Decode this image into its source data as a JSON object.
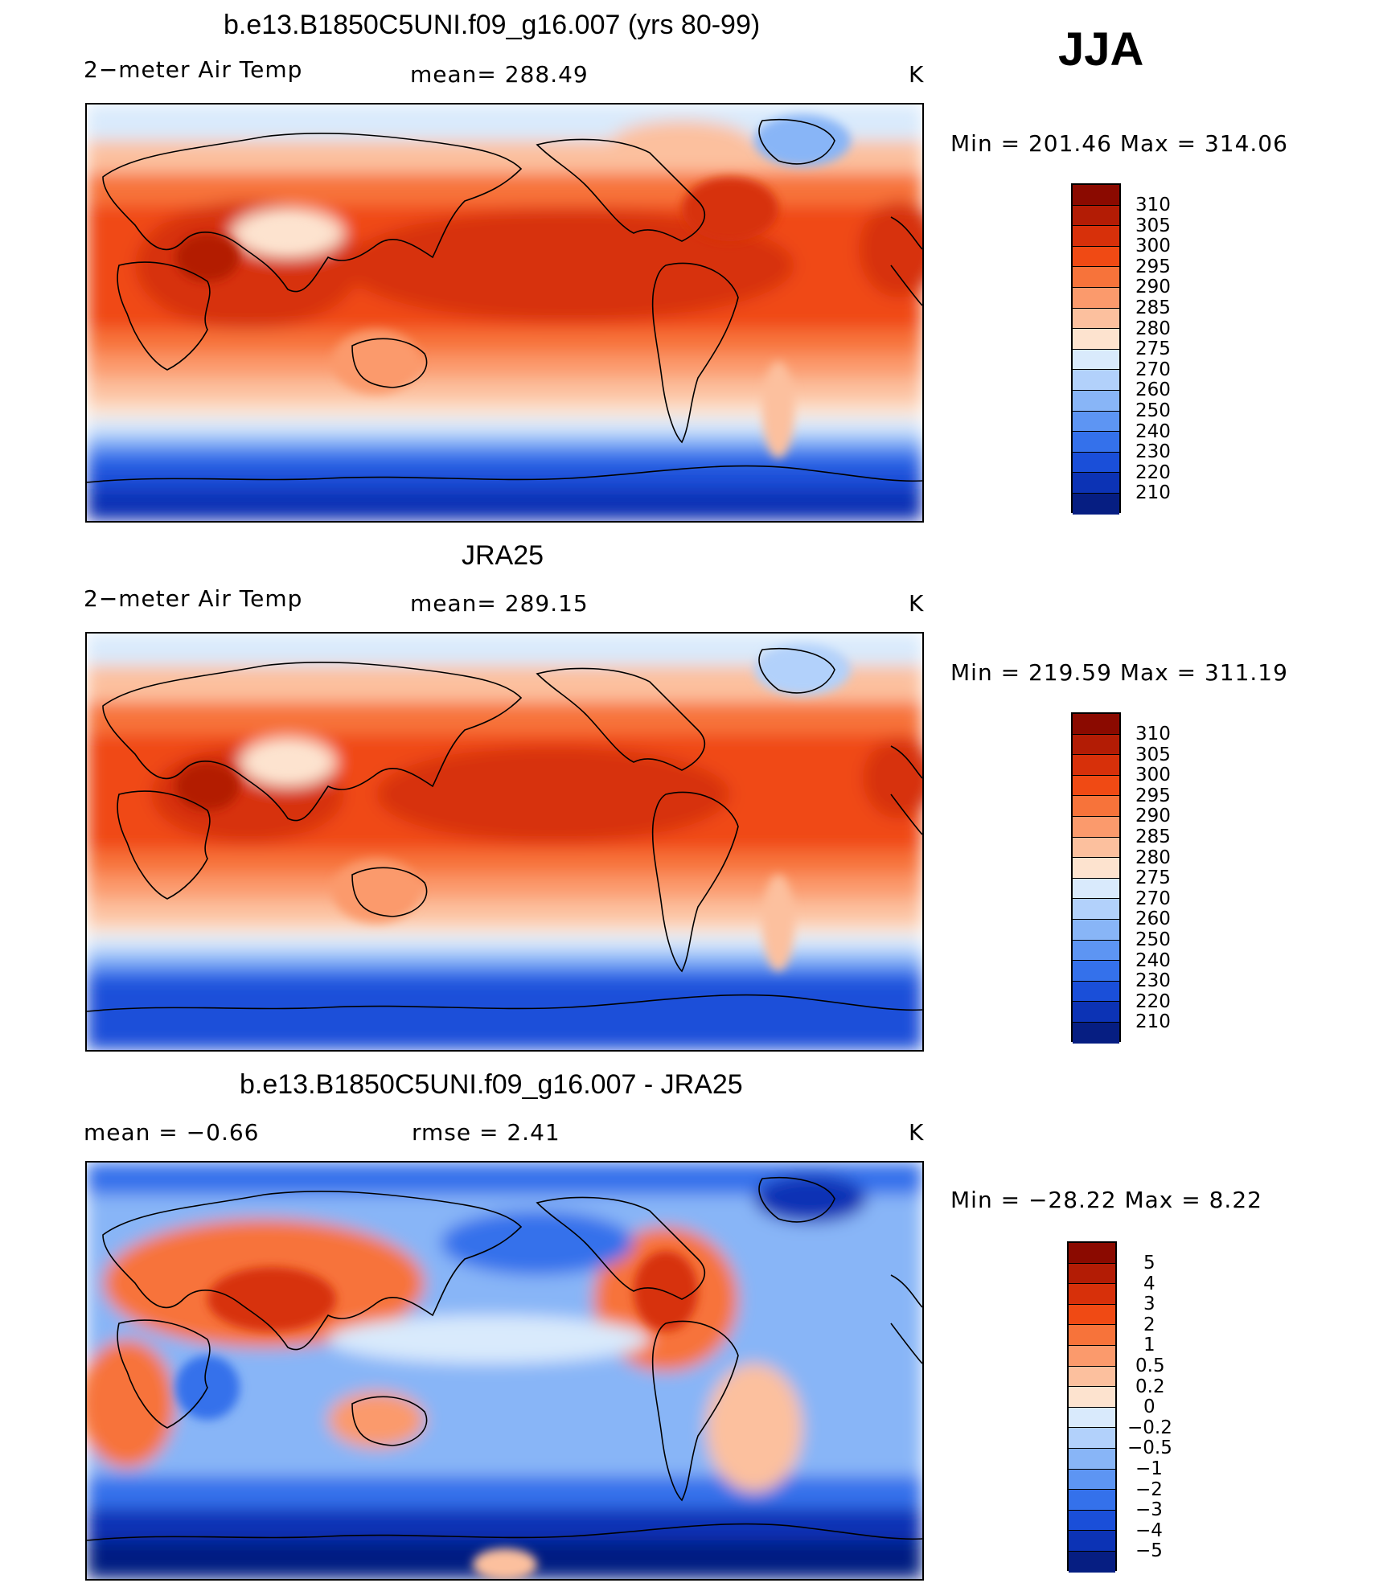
{
  "season": "JJA",
  "panels": [
    {
      "title": "b.e13.B1850C5UNI.f09_g16.007 (yrs 80-99)",
      "left_label": "2−meter Air Temp",
      "center_label": "mean=  288.49",
      "units": "K",
      "minmax": "Min  =  201.46  Max  =  314.06",
      "levels": [
        "310",
        "305",
        "300",
        "295",
        "290",
        "285",
        "280",
        "275",
        "270",
        "260",
        "250",
        "240",
        "230",
        "220",
        "210"
      ],
      "colors": [
        "#8b0a00",
        "#b31c05",
        "#d7300a",
        "#f04a14",
        "#f7733a",
        "#fb9a6c",
        "#fcc09e",
        "#fde3cf",
        "#d9eafc",
        "#b2d1fb",
        "#88b5f7",
        "#5d95f3",
        "#3471eb",
        "#1a4fd9",
        "#0c33b5",
        "#061e82"
      ]
    },
    {
      "title": "JRA25",
      "left_label": "2−meter Air Temp",
      "center_label": "mean=  289.15",
      "units": "K",
      "minmax": "Min  =  219.59  Max  =  311.19",
      "levels": [
        "310",
        "305",
        "300",
        "295",
        "290",
        "285",
        "280",
        "275",
        "270",
        "260",
        "250",
        "240",
        "230",
        "220",
        "210"
      ],
      "colors": [
        "#8b0a00",
        "#b31c05",
        "#d7300a",
        "#f04a14",
        "#f7733a",
        "#fb9a6c",
        "#fcc09e",
        "#fde3cf",
        "#d9eafc",
        "#b2d1fb",
        "#88b5f7",
        "#5d95f3",
        "#3471eb",
        "#1a4fd9",
        "#0c33b5",
        "#061e82"
      ]
    },
    {
      "title": "b.e13.B1850C5UNI.f09_g16.007 - JRA25",
      "left_label": "mean  =    −0.66",
      "center_label": "rmse  =     2.41",
      "units": "K",
      "minmax": "Min  =  −28.22  Max  =      8.22",
      "levels": [
        "5",
        "4",
        "3",
        "2",
        "1",
        "0.5",
        "0.2",
        "0",
        "−0.2",
        "−0.5",
        "−1",
        "−2",
        "−3",
        "−4",
        "−5"
      ],
      "colors": [
        "#8b0a00",
        "#b31c05",
        "#d7300a",
        "#f04a14",
        "#f7733a",
        "#fb9a6c",
        "#fcc09e",
        "#fde3cf",
        "#d9eafc",
        "#b2d1fb",
        "#88b5f7",
        "#5d95f3",
        "#3471eb",
        "#1a4fd9",
        "#0c33b5",
        "#061e82"
      ]
    }
  ]
}
